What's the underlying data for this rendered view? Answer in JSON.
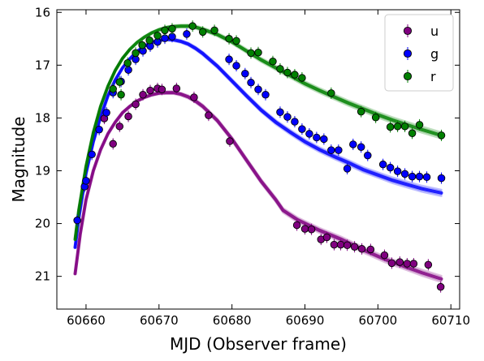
{
  "chart_data": {
    "type": "scatter",
    "xlabel": "MJD (Observer frame)",
    "ylabel": "Magnitude",
    "xlim": [
      60656.0,
      60711.2
    ],
    "ylim": [
      21.62,
      15.95
    ],
    "y_inverted": true,
    "x_ticks": [
      60660,
      60670,
      60680,
      60690,
      60700,
      60710
    ],
    "y_ticks": [
      16,
      17,
      18,
      19,
      20,
      21
    ],
    "legend_position": "top-right",
    "grid": false,
    "series": [
      {
        "name": "u",
        "color": "#800080",
        "points": [
          [
            60662.5,
            18.01
          ],
          [
            60663.7,
            18.49
          ],
          [
            60664.6,
            18.16
          ],
          [
            60665.8,
            17.97
          ],
          [
            60666.8,
            17.74
          ],
          [
            60667.8,
            17.56
          ],
          [
            60668.8,
            17.48
          ],
          [
            60669.8,
            17.44
          ],
          [
            60670.4,
            17.46
          ],
          [
            60672.4,
            17.44
          ],
          [
            60674.8,
            17.61
          ],
          [
            60676.8,
            17.95
          ],
          [
            60679.7,
            18.44
          ],
          [
            60688.9,
            20.03
          ],
          [
            60690.0,
            20.1
          ],
          [
            60690.9,
            20.11
          ],
          [
            60692.2,
            20.3
          ],
          [
            60693.0,
            20.26
          ],
          [
            60694.0,
            20.4
          ],
          [
            60694.9,
            20.4
          ],
          [
            60695.8,
            20.41
          ],
          [
            60696.8,
            20.44
          ],
          [
            60697.8,
            20.48
          ],
          [
            60699.0,
            20.49
          ],
          [
            60700.9,
            20.6
          ],
          [
            60701.9,
            20.75
          ],
          [
            60703.0,
            20.73
          ],
          [
            60704.0,
            20.76
          ],
          [
            60704.9,
            20.76
          ],
          [
            60706.9,
            20.78
          ],
          [
            60708.6,
            21.2
          ]
        ],
        "model": [
          [
            60658.5,
            20.95
          ],
          [
            60659.2,
            20.2
          ],
          [
            60660.0,
            19.55
          ],
          [
            60661.0,
            19.0
          ],
          [
            60662.0,
            18.6
          ],
          [
            60663.0,
            18.3
          ],
          [
            60664.0,
            18.08
          ],
          [
            60665.0,
            17.9
          ],
          [
            60666.0,
            17.78
          ],
          [
            60667.0,
            17.68
          ],
          [
            60668.0,
            17.61
          ],
          [
            60669.0,
            17.56
          ],
          [
            60670.0,
            17.53
          ],
          [
            60671.0,
            17.52
          ],
          [
            60672.0,
            17.52
          ],
          [
            60673.0,
            17.55
          ],
          [
            60674.0,
            17.6
          ],
          [
            60675.0,
            17.68
          ],
          [
            60676.0,
            17.78
          ],
          [
            60678.0,
            18.05
          ],
          [
            60680.0,
            18.4
          ],
          [
            60682.0,
            18.8
          ],
          [
            60684.0,
            19.2
          ],
          [
            60686.0,
            19.55
          ],
          [
            60687.0,
            19.75
          ],
          [
            60689.0,
            19.93
          ],
          [
            60692.0,
            20.13
          ],
          [
            60695.0,
            20.3
          ],
          [
            60698.0,
            20.5
          ],
          [
            60701.0,
            20.68
          ],
          [
            60704.0,
            20.83
          ],
          [
            60706.0,
            20.93
          ],
          [
            60708.7,
            21.05
          ]
        ]
      },
      {
        "name": "g",
        "color": "#0000ff",
        "points": [
          [
            60658.8,
            19.94
          ],
          [
            60659.8,
            19.3
          ],
          [
            60660.0,
            19.19
          ],
          [
            60660.8,
            18.69
          ],
          [
            60661.8,
            18.22
          ],
          [
            60662.8,
            17.9
          ],
          [
            60663.7,
            17.52
          ],
          [
            60664.8,
            17.31
          ],
          [
            60665.8,
            17.09
          ],
          [
            60666.8,
            16.89
          ],
          [
            60667.8,
            16.73
          ],
          [
            60668.8,
            16.64
          ],
          [
            60669.8,
            16.56
          ],
          [
            60670.8,
            16.49
          ],
          [
            60671.8,
            16.46
          ],
          [
            60673.8,
            16.41
          ],
          [
            60679.6,
            16.89
          ],
          [
            60680.6,
            17.01
          ],
          [
            60681.8,
            17.16
          ],
          [
            60682.6,
            17.33
          ],
          [
            60683.6,
            17.46
          ],
          [
            60684.6,
            17.56
          ],
          [
            60686.6,
            17.89
          ],
          [
            60687.6,
            17.98
          ],
          [
            60688.6,
            18.07
          ],
          [
            60689.6,
            18.21
          ],
          [
            60690.6,
            18.3
          ],
          [
            60691.6,
            18.37
          ],
          [
            60692.6,
            18.4
          ],
          [
            60693.6,
            18.61
          ],
          [
            60694.6,
            18.61
          ],
          [
            60695.8,
            18.96
          ],
          [
            60696.6,
            18.5
          ],
          [
            60697.7,
            18.55
          ],
          [
            60698.6,
            18.71
          ],
          [
            60700.7,
            18.88
          ],
          [
            60701.7,
            18.94
          ],
          [
            60702.7,
            19.01
          ],
          [
            60703.7,
            19.06
          ],
          [
            60704.7,
            19.11
          ],
          [
            60705.7,
            19.11
          ],
          [
            60706.7,
            19.12
          ],
          [
            60708.7,
            19.14
          ]
        ],
        "model": [
          [
            60658.5,
            20.45
          ],
          [
            60659.0,
            19.9
          ],
          [
            60660.0,
            19.05
          ],
          [
            60661.0,
            18.45
          ],
          [
            60662.0,
            17.98
          ],
          [
            60663.0,
            17.58
          ],
          [
            60664.0,
            17.28
          ],
          [
            60665.0,
            17.05
          ],
          [
            60666.0,
            16.88
          ],
          [
            60667.0,
            16.74
          ],
          [
            60668.0,
            16.64
          ],
          [
            60669.0,
            16.57
          ],
          [
            60670.0,
            16.53
          ],
          [
            60671.0,
            16.51
          ],
          [
            60672.0,
            16.52
          ],
          [
            60673.0,
            16.55
          ],
          [
            60674.0,
            16.6
          ],
          [
            60675.0,
            16.68
          ],
          [
            60676.0,
            16.78
          ],
          [
            60678.0,
            17.02
          ],
          [
            60680.0,
            17.3
          ],
          [
            60682.0,
            17.58
          ],
          [
            60684.0,
            17.85
          ],
          [
            60686.0,
            18.08
          ],
          [
            60688.0,
            18.27
          ],
          [
            60690.0,
            18.45
          ],
          [
            60692.0,
            18.6
          ],
          [
            60694.0,
            18.73
          ],
          [
            60696.0,
            18.85
          ],
          [
            60698.0,
            18.98
          ],
          [
            60700.0,
            19.08
          ],
          [
            60702.0,
            19.18
          ],
          [
            60704.0,
            19.26
          ],
          [
            60706.0,
            19.34
          ],
          [
            60708.7,
            19.42
          ]
        ]
      },
      {
        "name": "r",
        "color": "#008000",
        "points": [
          [
            60663.7,
            17.45
          ],
          [
            60664.6,
            17.32
          ],
          [
            60664.8,
            17.56
          ],
          [
            60665.7,
            16.96
          ],
          [
            60666.8,
            16.77
          ],
          [
            60667.7,
            16.62
          ],
          [
            60668.7,
            16.53
          ],
          [
            60669.8,
            16.44
          ],
          [
            60670.8,
            16.34
          ],
          [
            60671.8,
            16.31
          ],
          [
            60674.6,
            16.26
          ],
          [
            60676.0,
            16.37
          ],
          [
            60677.6,
            16.34
          ],
          [
            60679.6,
            16.5
          ],
          [
            60680.6,
            16.54
          ],
          [
            60682.6,
            16.77
          ],
          [
            60683.6,
            16.76
          ],
          [
            60685.6,
            16.93
          ],
          [
            60686.6,
            17.07
          ],
          [
            60687.6,
            17.14
          ],
          [
            60688.6,
            17.18
          ],
          [
            60689.6,
            17.24
          ],
          [
            60693.6,
            17.53
          ],
          [
            60697.7,
            17.88
          ],
          [
            60699.7,
            17.99
          ],
          [
            60701.7,
            18.17
          ],
          [
            60702.7,
            18.16
          ],
          [
            60703.7,
            18.16
          ],
          [
            60704.7,
            18.29
          ],
          [
            60705.7,
            18.13
          ],
          [
            60708.7,
            18.33
          ]
        ],
        "model": [
          [
            60658.5,
            20.3
          ],
          [
            60659.0,
            19.75
          ],
          [
            60660.0,
            18.92
          ],
          [
            60661.0,
            18.28
          ],
          [
            60662.0,
            17.78
          ],
          [
            60663.0,
            17.4
          ],
          [
            60664.0,
            17.1
          ],
          [
            60665.0,
            16.87
          ],
          [
            60666.0,
            16.7
          ],
          [
            60667.0,
            16.57
          ],
          [
            60668.0,
            16.47
          ],
          [
            60669.0,
            16.39
          ],
          [
            60670.0,
            16.33
          ],
          [
            60671.0,
            16.29
          ],
          [
            60672.0,
            16.27
          ],
          [
            60673.0,
            16.26
          ],
          [
            60674.0,
            16.26
          ],
          [
            60675.0,
            16.28
          ],
          [
            60676.0,
            16.32
          ],
          [
            60678.0,
            16.42
          ],
          [
            60680.0,
            16.56
          ],
          [
            60682.0,
            16.73
          ],
          [
            60684.0,
            16.9
          ],
          [
            60686.0,
            17.05
          ],
          [
            60688.0,
            17.2
          ],
          [
            60690.0,
            17.35
          ],
          [
            60692.0,
            17.48
          ],
          [
            60694.0,
            17.6
          ],
          [
            60696.0,
            17.72
          ],
          [
            60698.0,
            17.83
          ],
          [
            60700.0,
            17.94
          ],
          [
            60702.0,
            18.04
          ],
          [
            60704.0,
            18.13
          ],
          [
            60706.0,
            18.22
          ],
          [
            60708.7,
            18.33
          ]
        ]
      }
    ]
  }
}
